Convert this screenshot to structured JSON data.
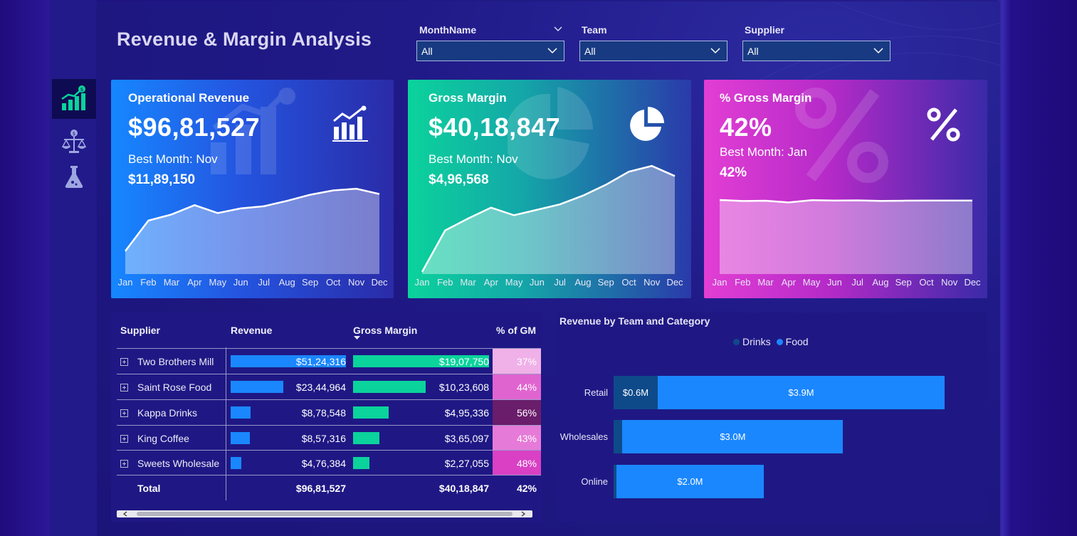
{
  "header": {
    "title": "Revenue & Margin Analysis"
  },
  "slicers": [
    {
      "label": "MonthName",
      "value": "All"
    },
    {
      "label": "Team",
      "value": "All"
    },
    {
      "label": "Supplier",
      "value": "All"
    }
  ],
  "sidebar": {
    "items": [
      {
        "icon": "revenue-chart-icon",
        "active": true
      },
      {
        "icon": "balance-scale-icon",
        "active": false
      },
      {
        "icon": "flask-icon",
        "active": false
      }
    ]
  },
  "kpi_cards": [
    {
      "title": "Operational Revenue",
      "value": "$96,81,527",
      "best_label": "Best Month: Nov",
      "best_value": "$11,89,150",
      "icon": "bar-chart-growth-icon"
    },
    {
      "title": "Gross Margin",
      "value": "$40,18,847",
      "best_label": "Best Month: Nov",
      "best_value": "$4,96,568",
      "icon": "pie-chart-icon"
    },
    {
      "title": "% Gross Margin",
      "value": "42%",
      "best_label": "Best Month: Jan",
      "best_value": "42%",
      "icon": "percent-icon"
    }
  ],
  "months": [
    "Jan",
    "Feb",
    "Mar",
    "Apr",
    "May",
    "Jun",
    "Jul",
    "Aug",
    "Sep",
    "Oct",
    "Nov",
    "Dec"
  ],
  "supplier_table": {
    "headers": [
      "Supplier",
      "Revenue",
      "Gross Margin",
      "% of GM"
    ],
    "rows": [
      {
        "supplier": "Two Brothers Mill",
        "revenue": "$51,24,316",
        "gross_margin": "$19,07,750",
        "pct": "37%",
        "rev_num": 5124316,
        "gm_num": 1907750,
        "pct_color": "#f0b0e8"
      },
      {
        "supplier": "Saint Rose Food",
        "revenue": "$23,44,964",
        "gross_margin": "$10,23,608",
        "pct": "44%",
        "rev_num": 2344964,
        "gm_num": 1023608,
        "pct_color": "#e064d0"
      },
      {
        "supplier": "Kappa Drinks",
        "revenue": "$8,78,548",
        "gross_margin": "$4,95,336",
        "pct": "56%",
        "rev_num": 878548,
        "gm_num": 495336,
        "pct_color": "#6a1d6a"
      },
      {
        "supplier": "King Coffee",
        "revenue": "$8,57,316",
        "gross_margin": "$3,65,097",
        "pct": "43%",
        "rev_num": 857316,
        "gm_num": 365097,
        "pct_color": "#e67ad8"
      },
      {
        "supplier": "Sweets Wholesale",
        "revenue": "$4,76,384",
        "gross_margin": "$2,27,055",
        "pct": "48%",
        "rev_num": 476384,
        "gm_num": 227055,
        "pct_color": "#d940c4"
      }
    ],
    "total": {
      "label": "Total",
      "revenue": "$96,81,527",
      "gross_margin": "$40,18,847",
      "pct": "42%"
    }
  },
  "colors": {
    "drinks": "#0e4a8a",
    "food": "#1a87ff",
    "gm_bar": "#0bd39c",
    "rev_bar": "#1a87ff"
  },
  "chart_data": [
    {
      "type": "line",
      "x": [
        "Jan",
        "Feb",
        "Mar",
        "Apr",
        "May",
        "Jun",
        "Jul",
        "Aug",
        "Sep",
        "Oct",
        "Nov",
        "Dec"
      ],
      "series": [
        {
          "values": [
            320000,
            745000,
            830000,
            960000,
            850000,
            915000,
            945000,
            1020000,
            1105000,
            1165000,
            1189150,
            1115000
          ]
        }
      ]
    },
    {
      "type": "line",
      "x": [
        "Jan",
        "Feb",
        "Mar",
        "Apr",
        "May",
        "Jun",
        "Jul",
        "Aug",
        "Sep",
        "Oct",
        "Nov",
        "Dec"
      ],
      "series": [
        {
          "values": [
            10000,
            200000,
            255000,
            305000,
            270000,
            295000,
            320000,
            360000,
            410000,
            470000,
            496568,
            450000
          ]
        }
      ]
    },
    {
      "type": "line",
      "x": [
        "Jan",
        "Feb",
        "Mar",
        "Apr",
        "May",
        "Jun",
        "Jul",
        "Aug",
        "Sep",
        "Oct",
        "Nov",
        "Dec"
      ],
      "series": [
        {
          "values": [
            42.2,
            41.6,
            41.8,
            40.8,
            42.1,
            41.9,
            42.0,
            41.7,
            41.8,
            41.9,
            41.9,
            41.9
          ]
        }
      ]
    },
    {
      "type": "bar",
      "title": "Revenue by Team and Category",
      "categories": [
        "Retail",
        "Wholesales",
        "Online"
      ],
      "series": [
        {
          "name": "Drinks",
          "values": [
            0.6,
            0.12,
            0.04
          ],
          "labels": [
            "$0.6M",
            "",
            ""
          ]
        },
        {
          "name": "Food",
          "values": [
            3.9,
            3.0,
            2.0
          ],
          "labels": [
            "$3.9M",
            "$3.0M",
            "$2.0M"
          ]
        }
      ],
      "legend": "top-center"
    }
  ]
}
